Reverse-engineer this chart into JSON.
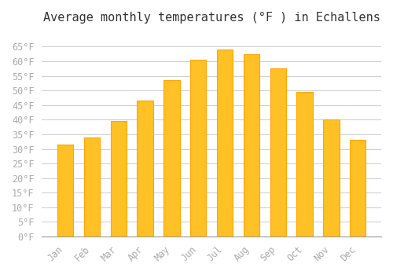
{
  "title": "Average monthly temperatures (°F ) in Echallens",
  "months": [
    "Jan",
    "Feb",
    "Mar",
    "Apr",
    "May",
    "Jun",
    "Jul",
    "Aug",
    "Sep",
    "Oct",
    "Nov",
    "Dec"
  ],
  "values": [
    31.5,
    34.0,
    39.5,
    46.5,
    53.5,
    60.5,
    64.0,
    62.5,
    57.5,
    49.5,
    40.0,
    33.0
  ],
  "bar_color_face": "#FFC125",
  "bar_color_edge": "#FFA500",
  "ylim": [
    0,
    70
  ],
  "yticks": [
    0,
    5,
    10,
    15,
    20,
    25,
    30,
    35,
    40,
    45,
    50,
    55,
    60,
    65
  ],
  "ytick_labels": [
    "0°F",
    "5°F",
    "10°F",
    "15°F",
    "20°F",
    "25°F",
    "30°F",
    "35°F",
    "40°F",
    "45°F",
    "50°F",
    "55°F",
    "60°F",
    "65°F"
  ],
  "background_color": "#ffffff",
  "grid_color": "#cccccc",
  "title_fontsize": 11,
  "tick_fontsize": 8.5,
  "tick_color": "#aaaaaa",
  "font_family": "monospace"
}
